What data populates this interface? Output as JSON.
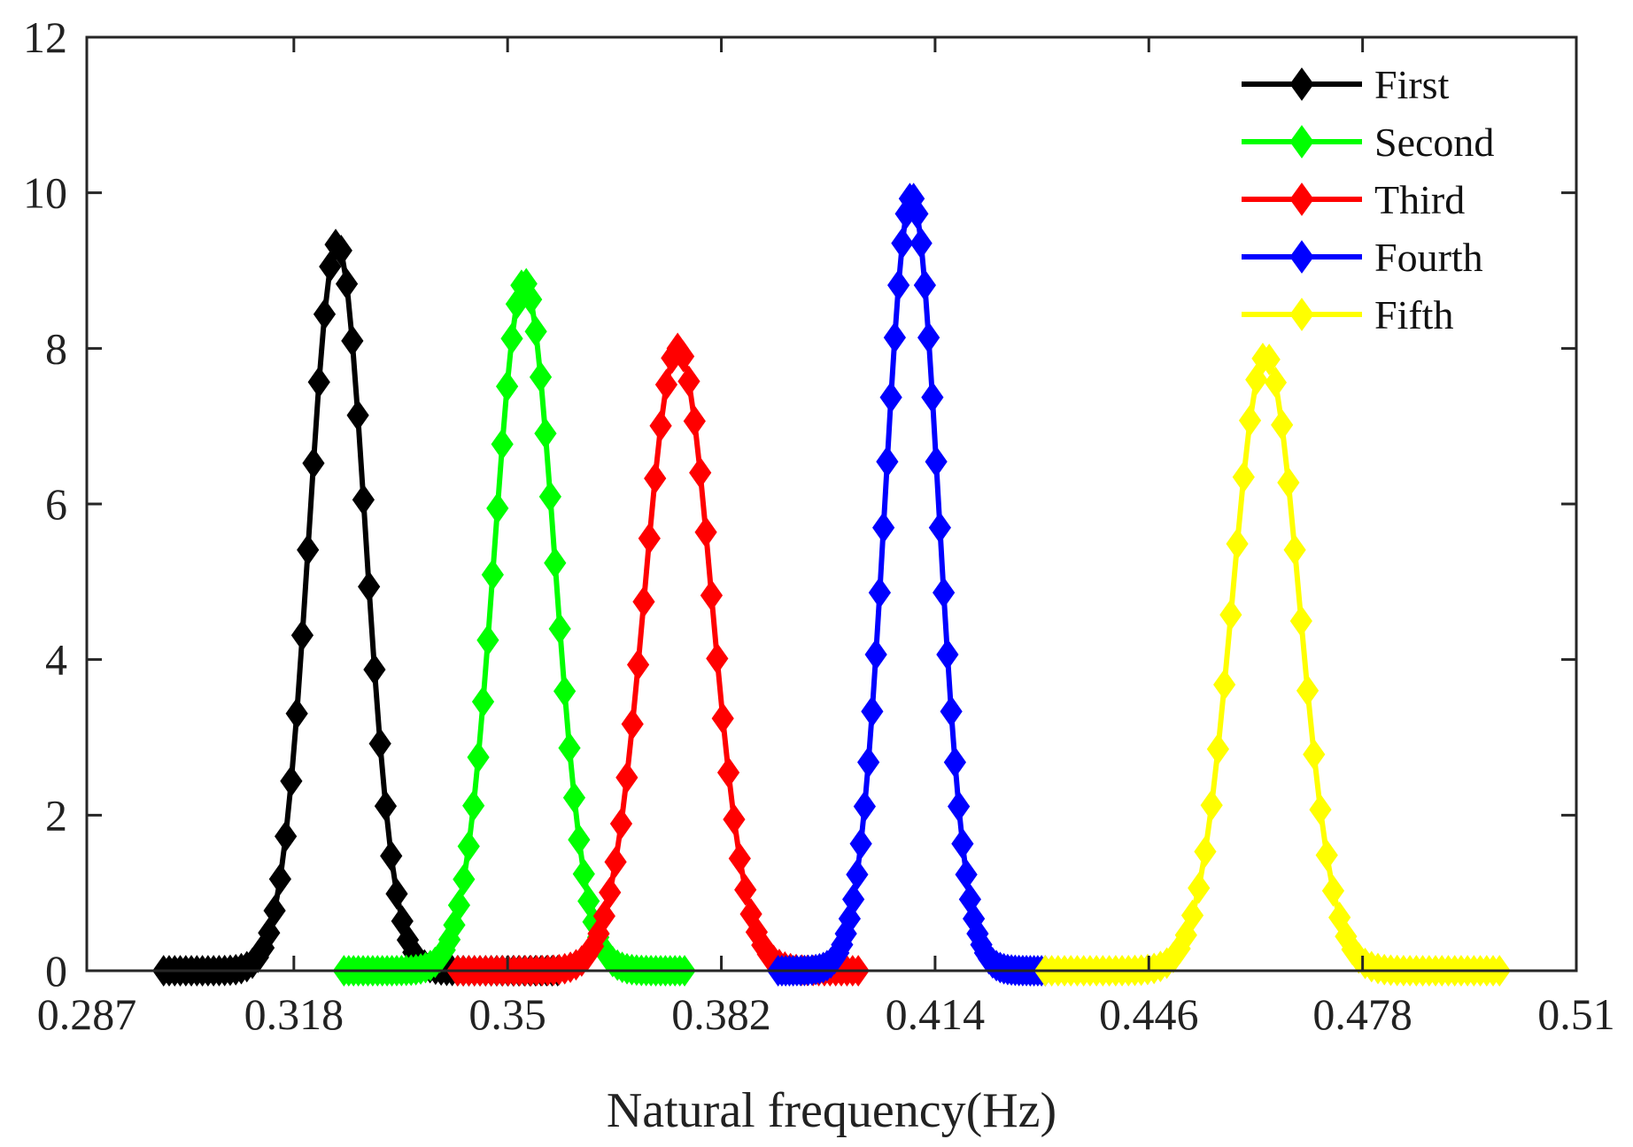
{
  "chart_data": {
    "type": "line",
    "title": "",
    "xlabel": "Natural frequency(Hz)",
    "ylabel": "",
    "xlim": [
      0.287,
      0.51
    ],
    "ylim": [
      0,
      12
    ],
    "xticks": [
      0.287,
      0.318,
      0.35,
      0.382,
      0.414,
      0.446,
      0.478,
      0.51
    ],
    "xtick_labels": [
      "0.287",
      "0.318",
      "0.35",
      "0.382",
      "0.414",
      "0.446",
      "0.478",
      "0.51"
    ],
    "yticks": [
      0,
      2,
      4,
      6,
      8,
      10,
      12
    ],
    "ytick_labels": [
      "0",
      "2",
      "4",
      "6",
      "8",
      "10",
      "12"
    ],
    "grid": false,
    "legend_position": "top-right",
    "marker": "diamond",
    "series": [
      {
        "name": "First",
        "color": "#000000",
        "mean": 0.3245,
        "peak": 9.35,
        "sigma": 0.0042,
        "x_start": 0.2985,
        "x_end": 0.3575,
        "points": 72
      },
      {
        "name": "Second",
        "color": "#00ff00",
        "mean": 0.3525,
        "peak": 8.85,
        "sigma": 0.0045,
        "x_start": 0.3255,
        "x_end": 0.3765,
        "points": 72
      },
      {
        "name": "Third",
        "color": "#ff0000",
        "mean": 0.3755,
        "peak": 8.0,
        "sigma": 0.005,
        "x_start": 0.3425,
        "x_end": 0.4025,
        "points": 72
      },
      {
        "name": "Fourth",
        "color": "#0000ff",
        "mean": 0.4105,
        "peak": 9.95,
        "sigma": 0.004,
        "x_start": 0.3905,
        "x_end": 0.4305,
        "points": 72
      },
      {
        "name": "Fifth",
        "color": "#ffff00",
        "mean": 0.4635,
        "peak": 7.9,
        "sigma": 0.005,
        "x_start": 0.4305,
        "x_end": 0.4985,
        "points": 72
      }
    ]
  }
}
